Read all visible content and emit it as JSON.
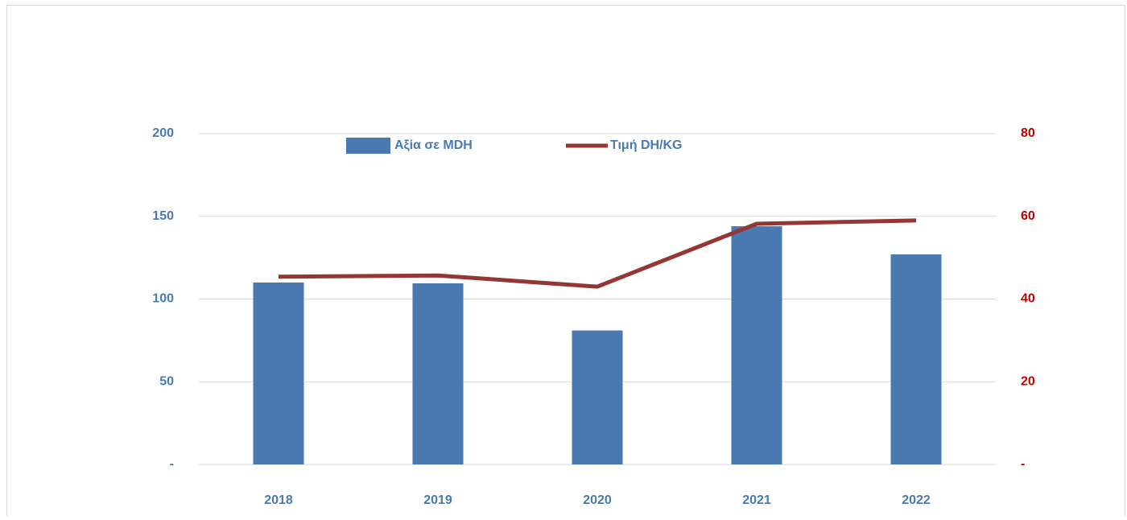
{
  "chart_data": {
    "type": "combo",
    "categories": [
      "2018",
      "2019",
      "2020",
      "2021",
      "2022"
    ],
    "series": [
      {
        "name": "Αξία σε MDH",
        "type": "bar",
        "color": "#4a78b0",
        "values": [
          110,
          109.5,
          81,
          144,
          127
        ]
      },
      {
        "name": "Τιμή DH/KG",
        "type": "line",
        "axis": "y2",
        "color": "#943634",
        "values": [
          45.4,
          45.7,
          43,
          58.2,
          59
        ]
      }
    ],
    "ylim": [
      0,
      200
    ],
    "yticks": [
      {
        "value": 0,
        "label": "-"
      },
      50,
      100,
      150,
      200
    ],
    "y2lim": [
      0,
      80
    ],
    "y2ticks": [
      {
        "value": 0,
        "label": "-"
      },
      20,
      40,
      60,
      80
    ],
    "grid": true,
    "legend": "top"
  }
}
